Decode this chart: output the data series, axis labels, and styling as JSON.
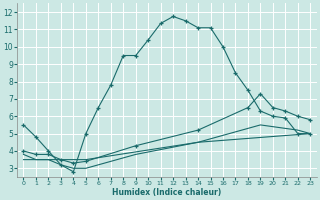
{
  "xlabel": "Humidex (Indice chaleur)",
  "xlim": [
    -0.5,
    23.5
  ],
  "ylim": [
    2.5,
    12.5
  ],
  "xticks": [
    0,
    1,
    2,
    3,
    4,
    5,
    6,
    7,
    8,
    9,
    10,
    11,
    12,
    13,
    14,
    15,
    16,
    17,
    18,
    19,
    20,
    21,
    22,
    23
  ],
  "yticks": [
    3,
    4,
    5,
    6,
    7,
    8,
    9,
    10,
    11,
    12
  ],
  "bg_color": "#cce8e4",
  "line_color": "#1a6b6b",
  "grid_color": "#ffffff",
  "curve1_x": [
    0,
    1,
    2,
    3,
    4,
    5,
    6,
    7,
    8,
    9,
    10,
    11,
    12,
    13,
    14,
    15,
    16,
    17,
    18,
    19,
    20,
    21,
    22,
    23
  ],
  "curve1_y": [
    5.5,
    4.8,
    4.0,
    3.2,
    2.8,
    5.0,
    6.5,
    7.8,
    9.5,
    9.5,
    10.4,
    11.35,
    11.75,
    11.5,
    11.1,
    11.1,
    10.0,
    8.5,
    7.5,
    6.3,
    6.0,
    5.9,
    5.0,
    5.0
  ],
  "curve2_x": [
    0,
    1,
    2,
    3,
    4,
    5,
    9,
    14,
    18,
    19,
    20,
    21,
    22,
    23
  ],
  "curve2_y": [
    4.0,
    3.8,
    3.8,
    3.5,
    3.3,
    3.4,
    4.3,
    5.2,
    6.5,
    7.3,
    6.5,
    6.3,
    6.0,
    5.8
  ],
  "curve3_x": [
    0,
    1,
    2,
    3,
    4,
    5,
    9,
    14,
    19,
    22,
    23
  ],
  "curve3_y": [
    3.8,
    3.5,
    3.5,
    3.2,
    3.0,
    3.0,
    3.8,
    4.5,
    5.5,
    5.2,
    5.0
  ],
  "curve4_x": [
    0,
    5,
    14,
    23
  ],
  "curve4_y": [
    3.5,
    3.5,
    4.5,
    5.0
  ]
}
